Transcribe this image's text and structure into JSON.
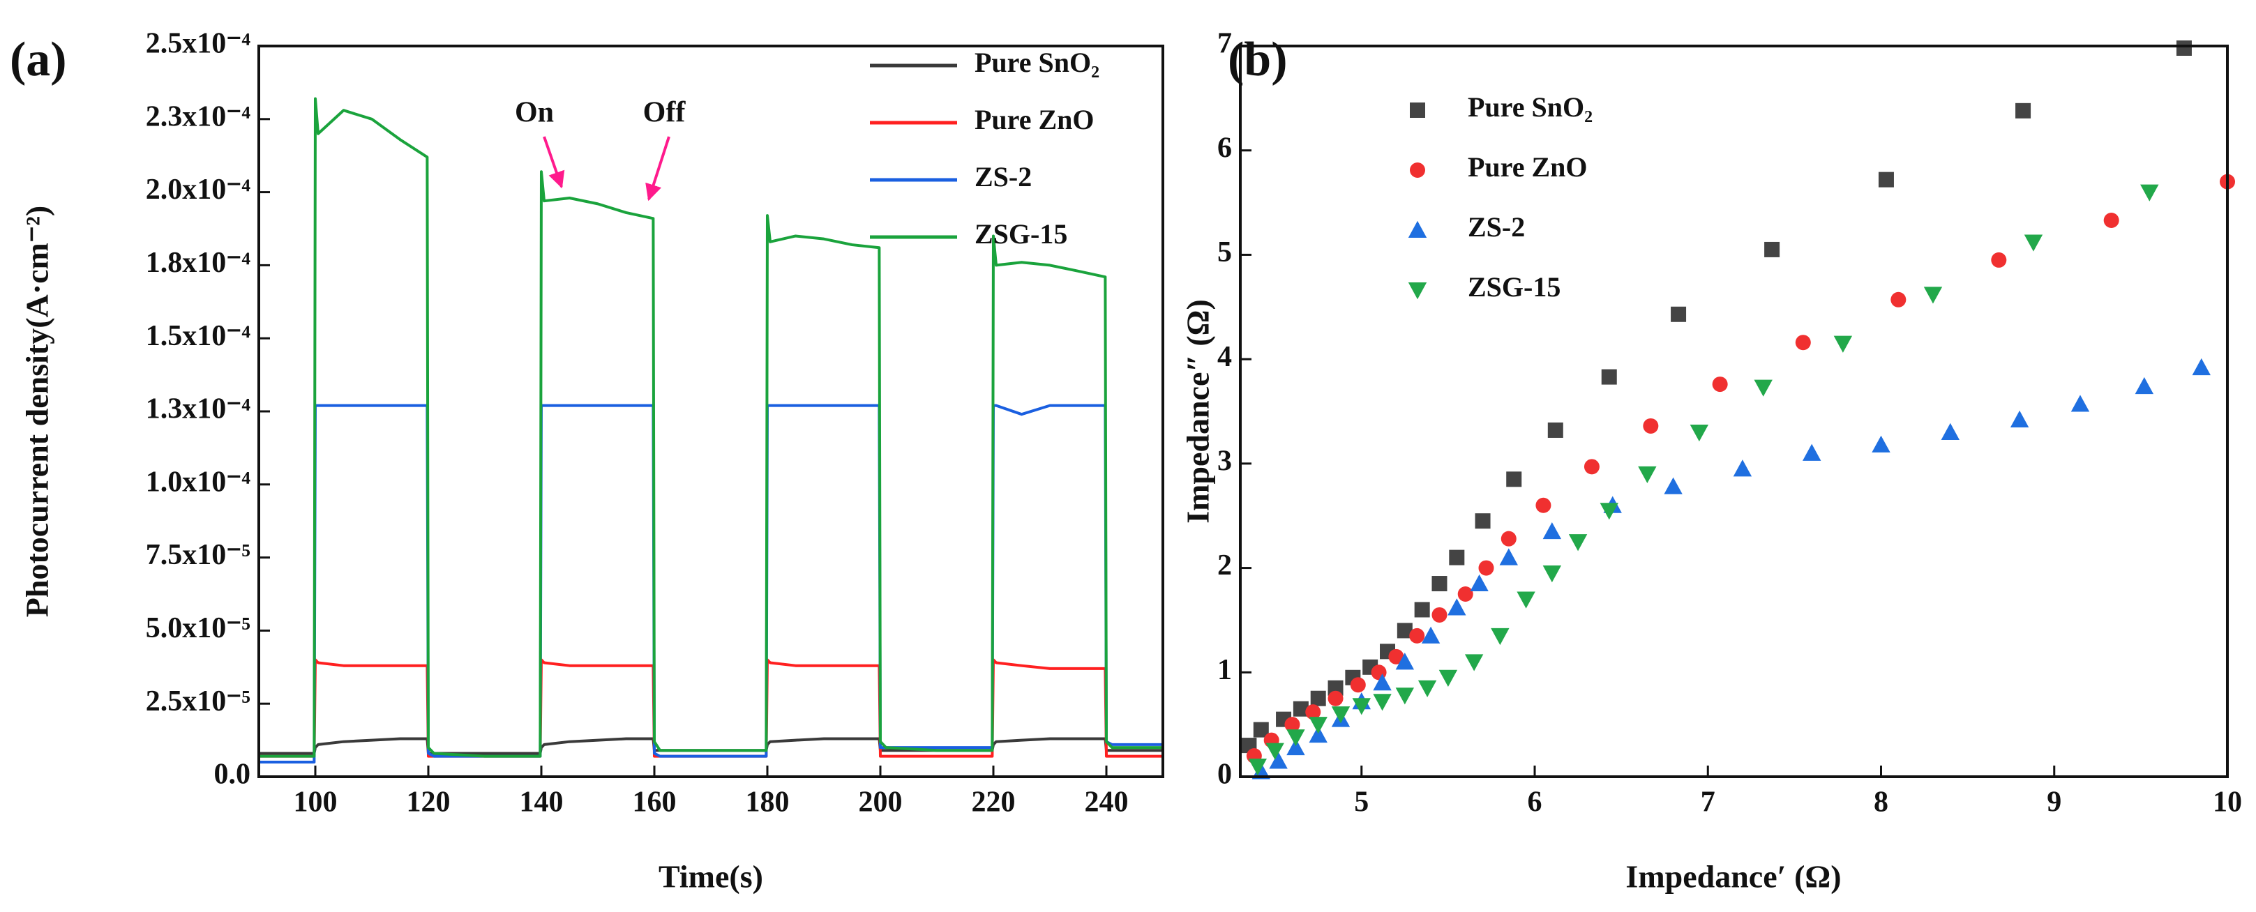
{
  "chart_data": [
    {
      "type": "line",
      "panel_label": "(a)",
      "xlabel": "Time(s)",
      "ylabel": "Photocurrent density(A·cm⁻²)",
      "x": [
        90,
        99.8,
        100,
        100.5,
        105,
        110,
        115,
        119.8,
        120,
        121,
        130,
        139.8,
        140,
        140.5,
        145,
        150,
        155,
        159.8,
        160,
        161,
        170,
        179.8,
        180,
        180.5,
        185,
        190,
        195,
        199.8,
        200,
        201,
        210,
        219.8,
        220,
        220.5,
        225,
        230,
        235,
        239.8,
        240,
        241,
        250
      ],
      "xlim": [
        90,
        250
      ],
      "xticks": [
        100,
        120,
        140,
        160,
        180,
        200,
        220,
        240
      ],
      "ylim": [
        0,
        0.00025
      ],
      "yticks": [
        {
          "value": 0,
          "label": "0.0"
        },
        {
          "value": 2.5e-05,
          "label": "2.5x10⁻⁵"
        },
        {
          "value": 5e-05,
          "label": "5.0x10⁻⁵"
        },
        {
          "value": 7.5e-05,
          "label": "7.5x10⁻⁵"
        },
        {
          "value": 0.0001,
          "label": "1.0x10⁻⁴"
        },
        {
          "value": 0.000125,
          "label": "1.3x10⁻⁴"
        },
        {
          "value": 0.00015,
          "label": "1.5x10⁻⁴"
        },
        {
          "value": 0.000175,
          "label": "1.8x10⁻⁴"
        },
        {
          "value": 0.0002,
          "label": "2.0x10⁻⁴"
        },
        {
          "value": 0.000225,
          "label": "2.3x10⁻⁴"
        },
        {
          "value": 0.00025,
          "label": "2.5x10⁻⁴"
        }
      ],
      "legend": "upper right",
      "annotations": [
        "On",
        "Off"
      ],
      "series": [
        {
          "name": "Pure SnO₂",
          "color": "#3a3a3a",
          "values": [
            8e-06,
            8e-06,
            1e-05,
            1.1e-05,
            1.2e-05,
            1.25e-05,
            1.3e-05,
            1.3e-05,
            8e-06,
            8e-06,
            8e-06,
            8e-06,
            1e-05,
            1.1e-05,
            1.2e-05,
            1.25e-05,
            1.3e-05,
            1.3e-05,
            9e-06,
            9e-06,
            9e-06,
            9e-06,
            1.1e-05,
            1.2e-05,
            1.25e-05,
            1.3e-05,
            1.3e-05,
            1.3e-05,
            9e-06,
            9e-06,
            9e-06,
            9e-06,
            1.1e-05,
            1.2e-05,
            1.25e-05,
            1.3e-05,
            1.3e-05,
            1.3e-05,
            9e-06,
            9e-06,
            9e-06
          ]
        },
        {
          "name": "Pure ZnO",
          "color": "#ff2020",
          "values": [
            7e-06,
            7e-06,
            4e-05,
            3.9e-05,
            3.8e-05,
            3.8e-05,
            3.8e-05,
            3.8e-05,
            7e-06,
            7e-06,
            7e-06,
            7e-06,
            4e-05,
            3.9e-05,
            3.8e-05,
            3.8e-05,
            3.8e-05,
            3.8e-05,
            7e-06,
            7e-06,
            7e-06,
            7e-06,
            4e-05,
            3.9e-05,
            3.8e-05,
            3.8e-05,
            3.8e-05,
            3.8e-05,
            7e-06,
            7e-06,
            7e-06,
            7e-06,
            4e-05,
            3.9e-05,
            3.8e-05,
            3.7e-05,
            3.7e-05,
            3.7e-05,
            7e-06,
            7e-06,
            7e-06
          ]
        },
        {
          "name": "ZS-2",
          "color": "#1a5fe0",
          "values": [
            5e-06,
            5e-06,
            0.000127,
            0.000127,
            0.000127,
            0.000127,
            0.000127,
            0.000127,
            8e-06,
            7e-06,
            7e-06,
            7e-06,
            0.000127,
            0.000127,
            0.000127,
            0.000127,
            0.000127,
            0.000127,
            8e-06,
            7e-06,
            7e-06,
            7e-06,
            0.000127,
            0.000127,
            0.000127,
            0.000127,
            0.000127,
            0.000127,
            1e-05,
            1e-05,
            1e-05,
            1e-05,
            0.000127,
            0.000127,
            0.000124,
            0.000127,
            0.000127,
            0.000127,
            1.2e-05,
            1.1e-05,
            1.1e-05
          ]
        },
        {
          "name": "ZSG-15",
          "color": "#1aa33c",
          "values": [
            7e-06,
            7e-06,
            0.000232,
            0.00022,
            0.000228,
            0.000225,
            0.000218,
            0.000212,
            1e-05,
            8e-06,
            7e-06,
            7e-06,
            0.000207,
            0.000197,
            0.000198,
            0.000196,
            0.000193,
            0.000191,
            1.2e-05,
            9e-06,
            9e-06,
            9e-06,
            0.000192,
            0.000183,
            0.000185,
            0.000184,
            0.000182,
            0.000181,
            1.2e-05,
            1e-05,
            9e-06,
            9e-06,
            0.000185,
            0.000175,
            0.000176,
            0.000175,
            0.000173,
            0.000171,
            1.2e-05,
            1e-05,
            1e-05
          ]
        }
      ]
    },
    {
      "type": "scatter",
      "panel_label": "(b)",
      "xlabel": "Impedance′ (Ω)",
      "ylabel": "Impedance″ (Ω)",
      "xlim": [
        4.3,
        10
      ],
      "xticks": [
        5,
        6,
        7,
        8,
        9,
        10
      ],
      "ylim": [
        0,
        7
      ],
      "yticks": [
        0,
        1,
        2,
        3,
        4,
        5,
        6,
        7
      ],
      "legend": "upper left",
      "series": [
        {
          "name": "Pure SnO₂",
          "color": "#444444",
          "marker": "square",
          "x": [
            4.35,
            4.42,
            4.55,
            4.65,
            4.75,
            4.85,
            4.95,
            5.05,
            5.15,
            5.25,
            5.35,
            5.45,
            5.55,
            5.7,
            5.88,
            6.12,
            6.43,
            6.83,
            7.37,
            8.03,
            8.82,
            9.75
          ],
          "values": [
            0.3,
            0.45,
            0.55,
            0.65,
            0.75,
            0.85,
            0.95,
            1.05,
            1.2,
            1.4,
            1.6,
            1.85,
            2.1,
            2.45,
            2.85,
            3.32,
            3.83,
            4.43,
            5.05,
            5.72,
            6.38,
            6.98
          ]
        },
        {
          "name": "Pure ZnO",
          "color": "#f03030",
          "marker": "circle",
          "x": [
            4.38,
            4.48,
            4.6,
            4.72,
            4.85,
            4.98,
            5.1,
            5.2,
            5.32,
            5.45,
            5.6,
            5.72,
            5.85,
            6.05,
            6.33,
            6.67,
            7.07,
            7.55,
            8.1,
            8.68,
            9.33,
            10.0
          ],
          "values": [
            0.2,
            0.35,
            0.5,
            0.62,
            0.75,
            0.88,
            1.0,
            1.15,
            1.35,
            1.55,
            1.75,
            2.0,
            2.28,
            2.6,
            2.97,
            3.36,
            3.76,
            4.16,
            4.57,
            4.95,
            5.33,
            5.7
          ]
        },
        {
          "name": "ZS-2",
          "color": "#1f6fe0",
          "marker": "triangle-up",
          "x": [
            4.42,
            4.52,
            4.62,
            4.75,
            4.88,
            5.0,
            5.12,
            5.25,
            5.4,
            5.55,
            5.68,
            5.85,
            6.1,
            6.45,
            6.8,
            7.2,
            7.6,
            8.0,
            8.4,
            8.8,
            9.15,
            9.52,
            9.85
          ],
          "values": [
            0.05,
            0.15,
            0.28,
            0.4,
            0.55,
            0.72,
            0.9,
            1.1,
            1.35,
            1.62,
            1.85,
            2.1,
            2.35,
            2.6,
            2.78,
            2.95,
            3.1,
            3.18,
            3.3,
            3.42,
            3.57,
            3.74,
            3.92
          ]
        },
        {
          "name": "ZSG-15",
          "color": "#22a84a",
          "marker": "triangle-down",
          "x": [
            4.4,
            4.5,
            4.62,
            4.75,
            4.88,
            5.0,
            5.12,
            5.25,
            5.38,
            5.5,
            5.65,
            5.8,
            5.95,
            6.1,
            6.25,
            6.43,
            6.65,
            6.95,
            7.32,
            7.78,
            8.3,
            8.88,
            9.55
          ],
          "values": [
            0.1,
            0.25,
            0.38,
            0.5,
            0.6,
            0.68,
            0.72,
            0.78,
            0.85,
            0.95,
            1.1,
            1.35,
            1.7,
            1.95,
            2.25,
            2.55,
            2.9,
            3.3,
            3.73,
            4.15,
            4.62,
            5.12,
            5.6
          ]
        }
      ]
    }
  ]
}
